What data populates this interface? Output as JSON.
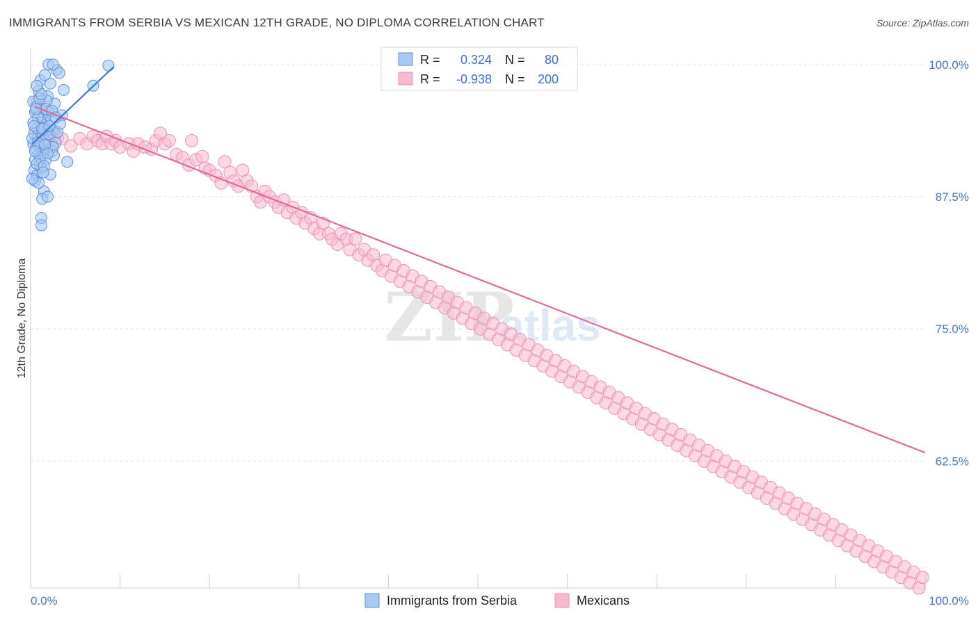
{
  "header": {
    "title": "IMMIGRANTS FROM SERBIA VS MEXICAN 12TH GRADE, NO DIPLOMA CORRELATION CHART",
    "source": "Source: ZipAtlas.com"
  },
  "watermark": {
    "zip": "ZIP",
    "atlas": "atlas"
  },
  "legend_top": {
    "rows": [
      {
        "r_label": "R =",
        "r_value": "0.324",
        "n_label": "N =",
        "n_value": "80"
      },
      {
        "r_label": "R =",
        "r_value": "-0.938",
        "n_label": "N =",
        "n_value": "200"
      }
    ]
  },
  "legend_bottom": {
    "items": [
      {
        "label": "Immigrants from Serbia"
      },
      {
        "label": "Mexicans"
      }
    ]
  },
  "colors": {
    "serbia_fill": "#a9c8f2",
    "serbia_stroke": "#5b8fd9",
    "serbia_line": "#3a78d4",
    "mexican_fill": "#f7b9cd",
    "mexican_stroke": "#ea8fb0",
    "mexican_line": "#e0689a",
    "tick_text": "#4a78c6",
    "grid": "#dcdcdc"
  },
  "chart_data": {
    "type": "scatter",
    "title": "IMMIGRANTS FROM SERBIA VS MEXICAN 12TH GRADE, NO DIPLOMA CORRELATION CHART",
    "xlabel": "",
    "ylabel": "12th Grade, No Diploma",
    "xlim": [
      0,
      100
    ],
    "ylim": [
      50.5,
      101.5
    ],
    "x_tick_labels": [
      "0.0%",
      "100.0%"
    ],
    "y_ticks": [
      {
        "value": 100,
        "label": "100.0%"
      },
      {
        "value": 87.5,
        "label": "87.5%"
      },
      {
        "value": 75,
        "label": "75.0%"
      },
      {
        "value": 62.5,
        "label": "62.5%"
      }
    ],
    "series": [
      {
        "name": "Immigrants from Serbia",
        "R": 0.324,
        "N": 80,
        "trend": {
          "x": [
            0.2,
            9.3
          ],
          "y": [
            92.5,
            99.8
          ]
        },
        "points": [
          [
            0.3,
            96.5
          ],
          [
            0.5,
            95.5
          ],
          [
            0.7,
            94.0
          ],
          [
            0.4,
            93.5
          ],
          [
            0.8,
            93.0
          ],
          [
            0.3,
            92.5
          ],
          [
            0.6,
            92.0
          ],
          [
            0.9,
            91.5
          ],
          [
            0.5,
            91.0
          ],
          [
            1.0,
            90.5
          ],
          [
            0.4,
            90.0
          ],
          [
            0.7,
            89.5
          ],
          [
            1.2,
            96.0
          ],
          [
            1.5,
            95.0
          ],
          [
            1.1,
            94.5
          ],
          [
            1.8,
            93.8
          ],
          [
            1.3,
            93.2
          ],
          [
            1.6,
            92.8
          ],
          [
            1.0,
            92.2
          ],
          [
            1.4,
            91.6
          ],
          [
            1.7,
            91.0
          ],
          [
            1.2,
            90.2
          ],
          [
            2.0,
            95.5
          ],
          [
            2.3,
            94.8
          ],
          [
            2.6,
            93.8
          ],
          [
            2.1,
            93.4
          ],
          [
            2.8,
            92.6
          ],
          [
            2.4,
            91.8
          ],
          [
            1.9,
            97.0
          ],
          [
            1.1,
            98.5
          ],
          [
            2.2,
            98.2
          ],
          [
            1.6,
            99.0
          ],
          [
            2.9,
            99.5
          ],
          [
            3.2,
            99.2
          ],
          [
            3.7,
            97.6
          ],
          [
            3.5,
            95.2
          ],
          [
            4.1,
            90.8
          ],
          [
            1.5,
            88.0
          ],
          [
            1.3,
            87.3
          ],
          [
            1.9,
            87.5
          ],
          [
            1.2,
            85.5
          ],
          [
            1.2,
            84.8
          ],
          [
            7.0,
            98.0
          ],
          [
            8.7,
            99.9
          ],
          [
            2.0,
            100.0
          ],
          [
            2.5,
            100.0
          ],
          [
            0.9,
            97.5
          ],
          [
            0.6,
            96.0
          ],
          [
            0.8,
            95.0
          ],
          [
            1.4,
            94.0
          ],
          [
            0.2,
            93.0
          ],
          [
            0.5,
            89.0
          ],
          [
            0.3,
            94.5
          ],
          [
            2.7,
            96.3
          ],
          [
            1.8,
            96.6
          ],
          [
            3.0,
            93.6
          ],
          [
            2.5,
            92.2
          ],
          [
            1.1,
            91.2
          ],
          [
            0.7,
            90.6
          ],
          [
            1.5,
            90.4
          ],
          [
            2.2,
            89.6
          ],
          [
            0.9,
            88.8
          ],
          [
            1.7,
            95.8
          ],
          [
            2.4,
            95.6
          ],
          [
            0.6,
            95.8
          ],
          [
            1.0,
            96.8
          ],
          [
            0.4,
            94.2
          ],
          [
            1.3,
            93.9
          ],
          [
            2.1,
            94.2
          ],
          [
            0.8,
            92.6
          ],
          [
            1.6,
            92.4
          ],
          [
            2.6,
            91.4
          ],
          [
            0.5,
            91.8
          ],
          [
            1.9,
            91.6
          ],
          [
            1.4,
            89.8
          ],
          [
            0.2,
            89.2
          ],
          [
            3.3,
            94.4
          ],
          [
            2.8,
            95.0
          ],
          [
            1.2,
            97.2
          ],
          [
            0.7,
            98.0
          ]
        ]
      },
      {
        "name": "Mexicans",
        "R": -0.938,
        "N": 200,
        "trend": {
          "x": [
            0.5,
            100
          ],
          "y": [
            96.0,
            63.3
          ]
        },
        "points": [
          [
            0.8,
            96.5
          ],
          [
            1.0,
            95.5
          ],
          [
            1.5,
            94.5
          ],
          [
            0.9,
            93.6
          ],
          [
            1.2,
            93.2
          ],
          [
            1.8,
            93.0
          ],
          [
            2.2,
            93.5
          ],
          [
            2.6,
            93.4
          ],
          [
            2.0,
            92.8
          ],
          [
            1.6,
            92.5
          ],
          [
            3.0,
            93.1
          ],
          [
            3.5,
            93.0
          ],
          [
            2.4,
            92.3
          ],
          [
            1.3,
            92.0
          ],
          [
            4.5,
            92.3
          ],
          [
            5.5,
            93.0
          ],
          [
            6.3,
            92.5
          ],
          [
            7.0,
            93.2
          ],
          [
            7.5,
            92.8
          ],
          [
            8.0,
            92.5
          ],
          [
            8.5,
            93.2
          ],
          [
            9.0,
            92.5
          ],
          [
            9.5,
            92.8
          ],
          [
            10.0,
            92.2
          ],
          [
            11.0,
            92.5
          ],
          [
            11.5,
            91.8
          ],
          [
            12.0,
            92.5
          ],
          [
            12.8,
            92.2
          ],
          [
            13.5,
            92.0
          ],
          [
            14.0,
            92.8
          ],
          [
            14.5,
            93.5
          ],
          [
            15.0,
            92.5
          ],
          [
            15.5,
            92.8
          ],
          [
            16.3,
            91.5
          ],
          [
            17.0,
            91.2
          ],
          [
            17.7,
            90.5
          ],
          [
            18.0,
            92.8
          ],
          [
            18.5,
            91.0
          ],
          [
            19.2,
            91.3
          ],
          [
            19.5,
            90.2
          ],
          [
            20.0,
            90.0
          ],
          [
            20.7,
            89.5
          ],
          [
            21.3,
            88.8
          ],
          [
            21.7,
            90.8
          ],
          [
            22.3,
            89.8
          ],
          [
            22.7,
            89.0
          ],
          [
            23.2,
            88.5
          ],
          [
            23.7,
            90.0
          ],
          [
            24.2,
            89.0
          ],
          [
            24.7,
            88.5
          ],
          [
            25.3,
            87.5
          ],
          [
            25.7,
            87.0
          ],
          [
            26.2,
            88.0
          ],
          [
            26.7,
            87.5
          ],
          [
            27.3,
            87.0
          ],
          [
            27.7,
            86.5
          ],
          [
            28.3,
            87.2
          ],
          [
            28.7,
            86.0
          ],
          [
            29.3,
            86.5
          ],
          [
            29.7,
            85.5
          ],
          [
            30.3,
            86.0
          ],
          [
            30.7,
            85.0
          ],
          [
            31.3,
            85.5
          ],
          [
            31.7,
            84.5
          ],
          [
            32.3,
            84.0
          ],
          [
            32.7,
            85.0
          ],
          [
            33.3,
            84.0
          ],
          [
            33.7,
            83.5
          ],
          [
            34.3,
            83.0
          ],
          [
            34.7,
            84.0
          ],
          [
            35.3,
            83.5
          ],
          [
            35.7,
            82.5
          ],
          [
            36.3,
            83.5
          ],
          [
            36.7,
            82.0
          ],
          [
            37.3,
            82.5
          ],
          [
            37.7,
            81.5
          ],
          [
            38.3,
            82.0
          ],
          [
            38.7,
            81.0
          ],
          [
            39.3,
            80.5
          ],
          [
            39.7,
            81.5
          ],
          [
            40.3,
            80.0
          ],
          [
            40.7,
            81.0
          ],
          [
            41.3,
            79.5
          ],
          [
            41.7,
            80.5
          ],
          [
            42.3,
            79.0
          ],
          [
            42.7,
            80.0
          ],
          [
            43.3,
            78.5
          ],
          [
            43.7,
            79.5
          ],
          [
            44.3,
            78.0
          ],
          [
            44.7,
            79.0
          ],
          [
            45.3,
            77.5
          ],
          [
            45.7,
            78.5
          ],
          [
            46.3,
            77.0
          ],
          [
            46.7,
            78.0
          ],
          [
            47.3,
            76.5
          ],
          [
            47.7,
            77.5
          ],
          [
            48.3,
            76.0
          ],
          [
            48.7,
            77.0
          ],
          [
            49.3,
            75.5
          ],
          [
            49.7,
            76.5
          ],
          [
            50.3,
            75.0
          ],
          [
            50.7,
            76.0
          ],
          [
            51.3,
            74.5
          ],
          [
            51.7,
            75.5
          ],
          [
            52.3,
            74.0
          ],
          [
            52.7,
            75.0
          ],
          [
            53.3,
            73.5
          ],
          [
            53.7,
            74.5
          ],
          [
            54.3,
            73.0
          ],
          [
            54.7,
            74.0
          ],
          [
            55.3,
            72.5
          ],
          [
            55.7,
            73.5
          ],
          [
            56.3,
            72.0
          ],
          [
            56.7,
            73.0
          ],
          [
            57.3,
            71.5
          ],
          [
            57.7,
            72.5
          ],
          [
            58.3,
            71.0
          ],
          [
            58.7,
            72.0
          ],
          [
            59.3,
            70.5
          ],
          [
            59.7,
            71.5
          ],
          [
            60.3,
            70.0
          ],
          [
            60.7,
            71.0
          ],
          [
            61.3,
            69.5
          ],
          [
            61.7,
            70.5
          ],
          [
            62.3,
            69.0
          ],
          [
            62.7,
            70.0
          ],
          [
            63.3,
            68.5
          ],
          [
            63.7,
            69.5
          ],
          [
            64.3,
            68.0
          ],
          [
            64.7,
            69.0
          ],
          [
            65.3,
            67.5
          ],
          [
            65.7,
            68.5
          ],
          [
            66.3,
            67.0
          ],
          [
            66.7,
            68.0
          ],
          [
            67.3,
            66.5
          ],
          [
            67.7,
            67.5
          ],
          [
            68.3,
            66.0
          ],
          [
            68.7,
            67.0
          ],
          [
            69.3,
            65.5
          ],
          [
            69.7,
            66.5
          ],
          [
            70.3,
            65.0
          ],
          [
            70.7,
            66.0
          ],
          [
            71.3,
            64.5
          ],
          [
            71.7,
            65.5
          ],
          [
            72.3,
            64.0
          ],
          [
            72.7,
            65.0
          ],
          [
            73.3,
            63.5
          ],
          [
            73.7,
            64.5
          ],
          [
            74.3,
            63.0
          ],
          [
            74.7,
            64.0
          ],
          [
            75.3,
            62.5
          ],
          [
            75.7,
            63.5
          ],
          [
            76.3,
            62.0
          ],
          [
            76.7,
            63.0
          ],
          [
            77.3,
            61.5
          ],
          [
            77.7,
            62.5
          ],
          [
            78.3,
            61.0
          ],
          [
            78.7,
            62.0
          ],
          [
            79.3,
            60.5
          ],
          [
            79.7,
            61.5
          ],
          [
            80.3,
            60.0
          ],
          [
            80.7,
            61.0
          ],
          [
            81.3,
            59.5
          ],
          [
            81.7,
            60.5
          ],
          [
            82.3,
            59.0
          ],
          [
            82.7,
            60.0
          ],
          [
            83.3,
            58.5
          ],
          [
            83.7,
            59.5
          ],
          [
            84.3,
            58.0
          ],
          [
            84.7,
            59.0
          ],
          [
            85.3,
            57.5
          ],
          [
            85.7,
            58.5
          ],
          [
            86.3,
            57.0
          ],
          [
            86.7,
            58.0
          ],
          [
            87.3,
            56.5
          ],
          [
            87.7,
            57.5
          ],
          [
            88.3,
            56.0
          ],
          [
            88.7,
            57.0
          ],
          [
            89.3,
            55.5
          ],
          [
            89.7,
            56.5
          ],
          [
            90.3,
            55.0
          ],
          [
            90.7,
            56.0
          ],
          [
            91.3,
            54.5
          ],
          [
            91.7,
            55.5
          ],
          [
            92.3,
            54.0
          ],
          [
            92.7,
            55.0
          ],
          [
            93.3,
            53.5
          ],
          [
            93.7,
            54.5
          ],
          [
            94.3,
            53.0
          ],
          [
            94.7,
            54.0
          ],
          [
            95.3,
            52.5
          ],
          [
            95.7,
            53.5
          ],
          [
            96.3,
            52.0
          ],
          [
            96.7,
            53.0
          ],
          [
            97.3,
            51.5
          ],
          [
            97.7,
            52.5
          ],
          [
            98.3,
            51.0
          ],
          [
            98.7,
            52.0
          ],
          [
            99.3,
            50.5
          ],
          [
            99.7,
            51.5
          ]
        ]
      }
    ]
  }
}
